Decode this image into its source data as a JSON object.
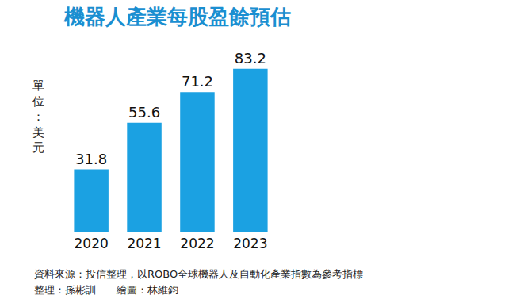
{
  "chart_data": {
    "type": "bar",
    "title": "機器人產業每股盈餘預估",
    "y_label": "單位：美元",
    "categories": [
      "2020",
      "2021",
      "2022",
      "2023"
    ],
    "values": [
      31.8,
      55.6,
      71.2,
      83.2
    ],
    "color": "#1ba1e2",
    "ylim": [
      0,
      90
    ],
    "yticks": [],
    "grid": false,
    "data_labels": true,
    "tick_labels": "x",
    "annotations": [
      "資料來源：投信整理，以ROBO全球機器人及自動化產業指數為參考指標",
      "整理：孫彬訓",
      "繪圖：林維鈞"
    ]
  }
}
